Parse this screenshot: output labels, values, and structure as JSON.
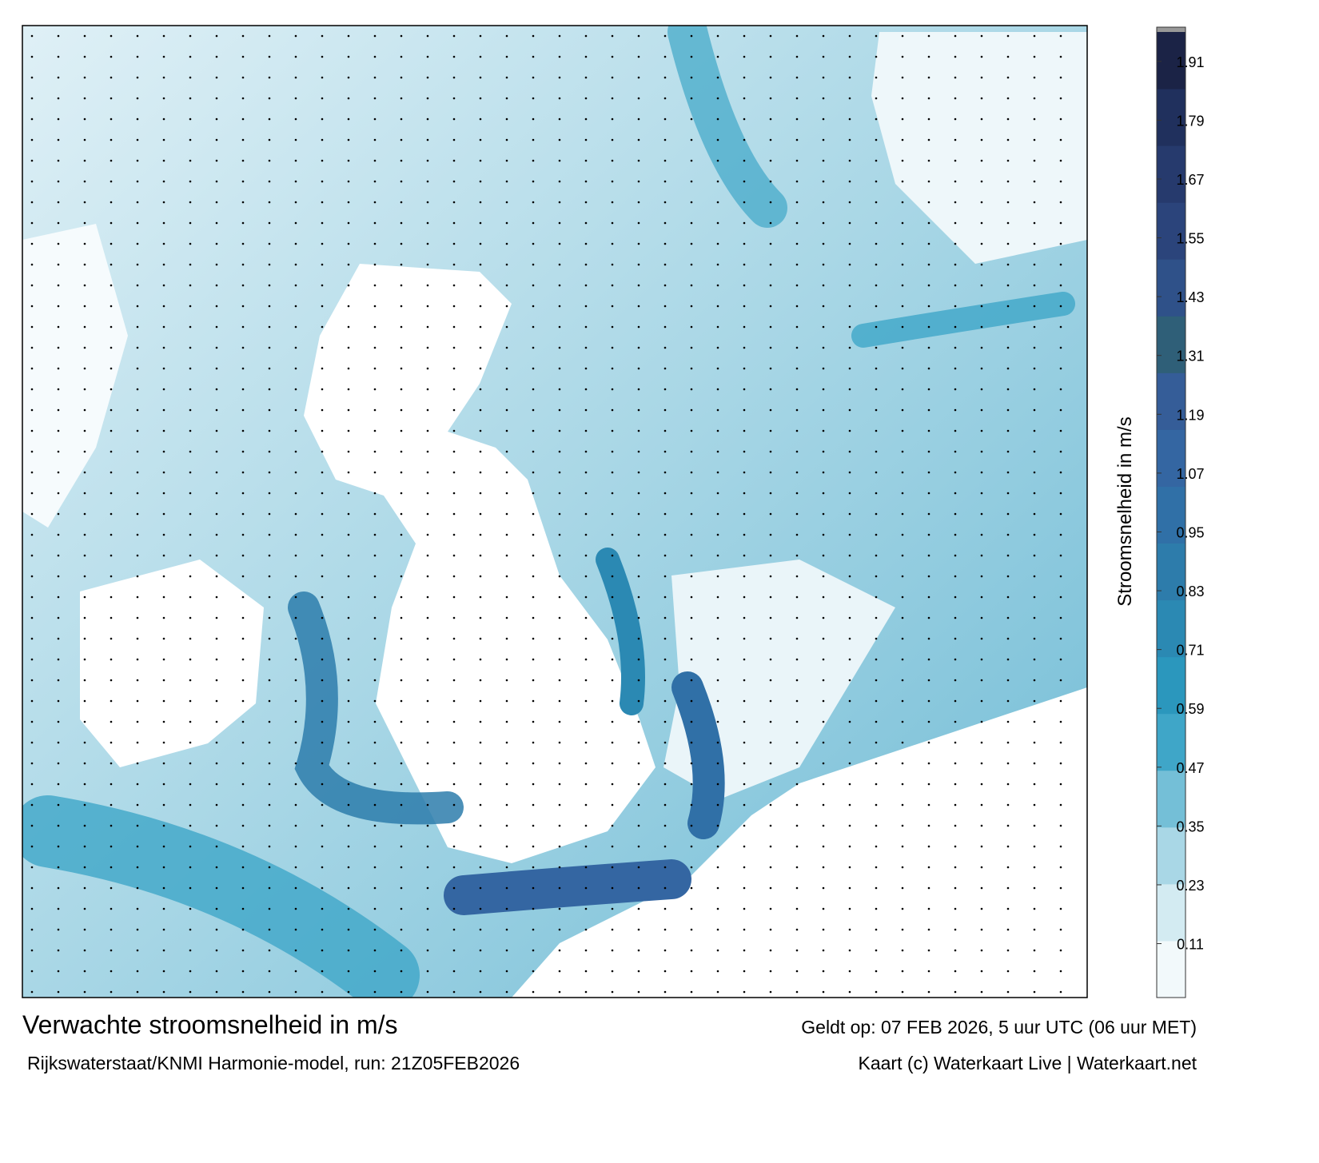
{
  "map": {
    "title": "Verwachte stroomsnelheid in m/s",
    "subtitle": "Rijkswaterstaat/KNMI Harmonie-model, run: 21Z05FEB2026",
    "valid_time": "Geldt op: 07 FEB 2026, 5 uur UTC (06 uur MET)",
    "credit": "Kaart (c) Waterkaart Live | Waterkaart.net",
    "colorbar": {
      "label": "Stroomsnelheid in m/s",
      "lim": [
        0,
        1.97
      ],
      "ticks": [
        0.11,
        0.23,
        0.35,
        0.47,
        0.59,
        0.71,
        0.83,
        0.95,
        1.07,
        1.19,
        1.31,
        1.43,
        1.55,
        1.67,
        1.79,
        1.91
      ],
      "colors": [
        "#f2f9fb",
        "#d3ebf2",
        "#a9d7e6",
        "#74bfd7",
        "#3fa6c8",
        "#2b97bd",
        "#2b89b3",
        "#2d7cab",
        "#3070a7",
        "#3466a2",
        "#355d98",
        "#2f5f78",
        "#2f5189",
        "#2b447b",
        "#263a6d",
        "#20305d",
        "#1b2346"
      ]
    }
  }
}
